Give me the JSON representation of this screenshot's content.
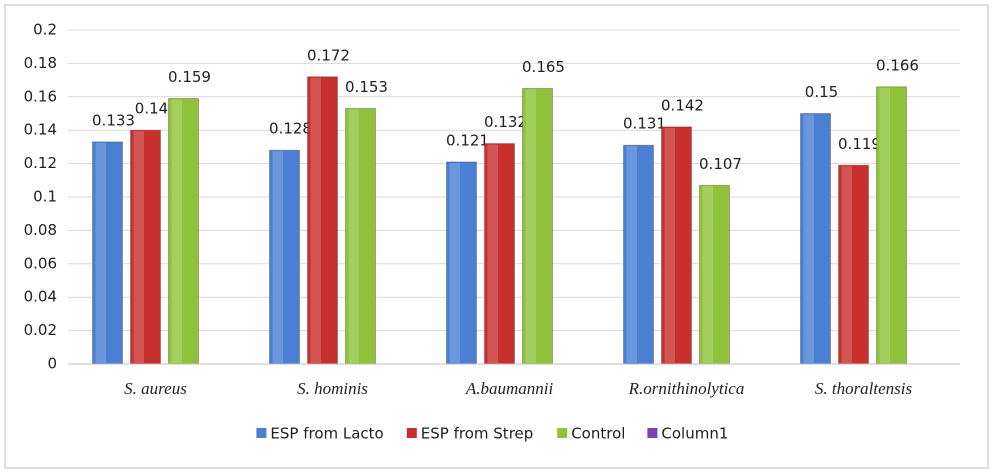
{
  "chart_data": {
    "type": "bar",
    "categories": [
      "S. aureus",
      "S. hominis",
      "A.baumannii",
      "R.ornithinolytica",
      "S. thoraltensis"
    ],
    "series": [
      {
        "name": "ESP from Lacto",
        "color": "#4a7fd4",
        "values": [
          0.133,
          0.128,
          0.121,
          0.131,
          0.15
        ]
      },
      {
        "name": "ESP from Strep",
        "color": "#c8302e",
        "values": [
          0.14,
          0.172,
          0.132,
          0.142,
          0.119
        ]
      },
      {
        "name": "Control",
        "color": "#8fc23a",
        "values": [
          0.159,
          0.153,
          0.165,
          0.107,
          0.166
        ]
      },
      {
        "name": "Column1",
        "color": "#7a44b0",
        "values": [
          null,
          null,
          null,
          null,
          null
        ]
      }
    ],
    "ylim": [
      0,
      0.2
    ],
    "yticks": [
      0,
      0.02,
      0.04,
      0.06,
      0.08,
      0.1,
      0.12,
      0.14,
      0.16,
      0.18,
      0.2
    ],
    "grid": true,
    "legend": "bottom"
  }
}
